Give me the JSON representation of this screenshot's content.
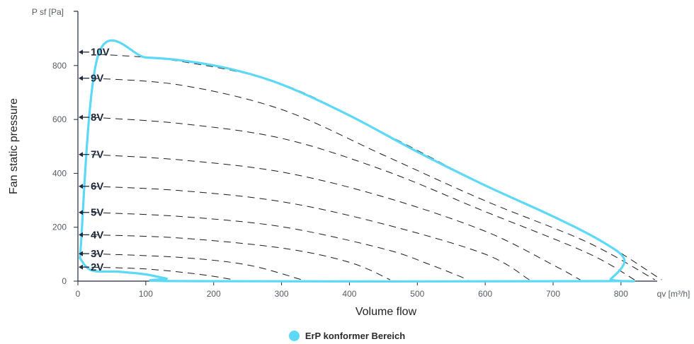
{
  "chart_data": {
    "type": "line",
    "ylabel_unit": "P sf [Pa]",
    "ylabel": "Fan static pressure",
    "xlabel": "Volume flow",
    "xlabel_unit": "qv [m³/h]",
    "xlim": [
      0,
      900
    ],
    "ylim": [
      0,
      1000
    ],
    "x_ticks": [
      0,
      100,
      200,
      300,
      400,
      500,
      600,
      700,
      800
    ],
    "y_ticks": [
      0,
      200,
      400,
      600,
      800
    ],
    "grid": false,
    "legend_position": "bottom-center",
    "colors": {
      "erp": "#5dd8f7",
      "curve": "#1a1a1a",
      "axis": "#1f2a3c",
      "label": "#1f2a3c"
    },
    "series": [
      {
        "label": "10V",
        "marker_y": 850,
        "points": [
          [
            30,
            842
          ],
          [
            150,
            816
          ],
          [
            300,
            732
          ],
          [
            450,
            550
          ],
          [
            600,
            355
          ],
          [
            750,
            178
          ],
          [
            860,
            5
          ]
        ]
      },
      {
        "label": "9V",
        "marker_y": 753,
        "points": [
          [
            20,
            753
          ],
          [
            150,
            728
          ],
          [
            300,
            637
          ],
          [
            450,
            468
          ],
          [
            600,
            298
          ],
          [
            750,
            145
          ],
          [
            850,
            5
          ]
        ]
      },
      {
        "label": "8V",
        "marker_y": 608,
        "points": [
          [
            20,
            608
          ],
          [
            150,
            585
          ],
          [
            300,
            530
          ],
          [
            450,
            412
          ],
          [
            600,
            258
          ],
          [
            750,
            105
          ],
          [
            820,
            5
          ]
        ]
      },
      {
        "label": "7V",
        "marker_y": 470,
        "points": [
          [
            20,
            470
          ],
          [
            150,
            450
          ],
          [
            300,
            405
          ],
          [
            450,
            313
          ],
          [
            600,
            185
          ],
          [
            700,
            60
          ],
          [
            740,
            5
          ]
        ]
      },
      {
        "label": "6V",
        "marker_y": 352,
        "points": [
          [
            20,
            352
          ],
          [
            150,
            336
          ],
          [
            300,
            295
          ],
          [
            450,
            212
          ],
          [
            600,
            100
          ],
          [
            665,
            5
          ]
        ]
      },
      {
        "label": "5V",
        "marker_y": 255,
        "points": [
          [
            20,
            255
          ],
          [
            150,
            240
          ],
          [
            300,
            202
          ],
          [
            450,
            120
          ],
          [
            520,
            60
          ],
          [
            575,
            5
          ]
        ]
      },
      {
        "label": "4V",
        "marker_y": 172,
        "points": [
          [
            20,
            172
          ],
          [
            150,
            160
          ],
          [
            300,
            123
          ],
          [
            400,
            70
          ],
          [
            460,
            5
          ]
        ]
      },
      {
        "label": "3V",
        "marker_y": 102,
        "points": [
          [
            20,
            102
          ],
          [
            150,
            88
          ],
          [
            250,
            60
          ],
          [
            330,
            5
          ]
        ]
      },
      {
        "label": "2V",
        "marker_y": 52,
        "points": [
          [
            20,
            52
          ],
          [
            100,
            45
          ],
          [
            180,
            25
          ],
          [
            230,
            5
          ]
        ]
      }
    ],
    "erp_region": {
      "name": "ErP konformer Bereich",
      "points": [
        [
          3,
          85
        ],
        [
          30,
          840
        ],
        [
          100,
          830
        ],
        [
          150,
          820
        ],
        [
          220,
          790
        ],
        [
          300,
          730
        ],
        [
          400,
          615
        ],
        [
          500,
          480
        ],
        [
          600,
          355
        ],
        [
          700,
          240
        ],
        [
          770,
          150
        ],
        [
          805,
          80
        ],
        [
          785,
          8
        ],
        [
          770,
          0
        ],
        [
          160,
          0
        ],
        [
          130,
          10
        ],
        [
          100,
          25
        ],
        [
          60,
          35
        ],
        [
          20,
          40
        ],
        [
          3,
          85
        ]
      ]
    }
  }
}
